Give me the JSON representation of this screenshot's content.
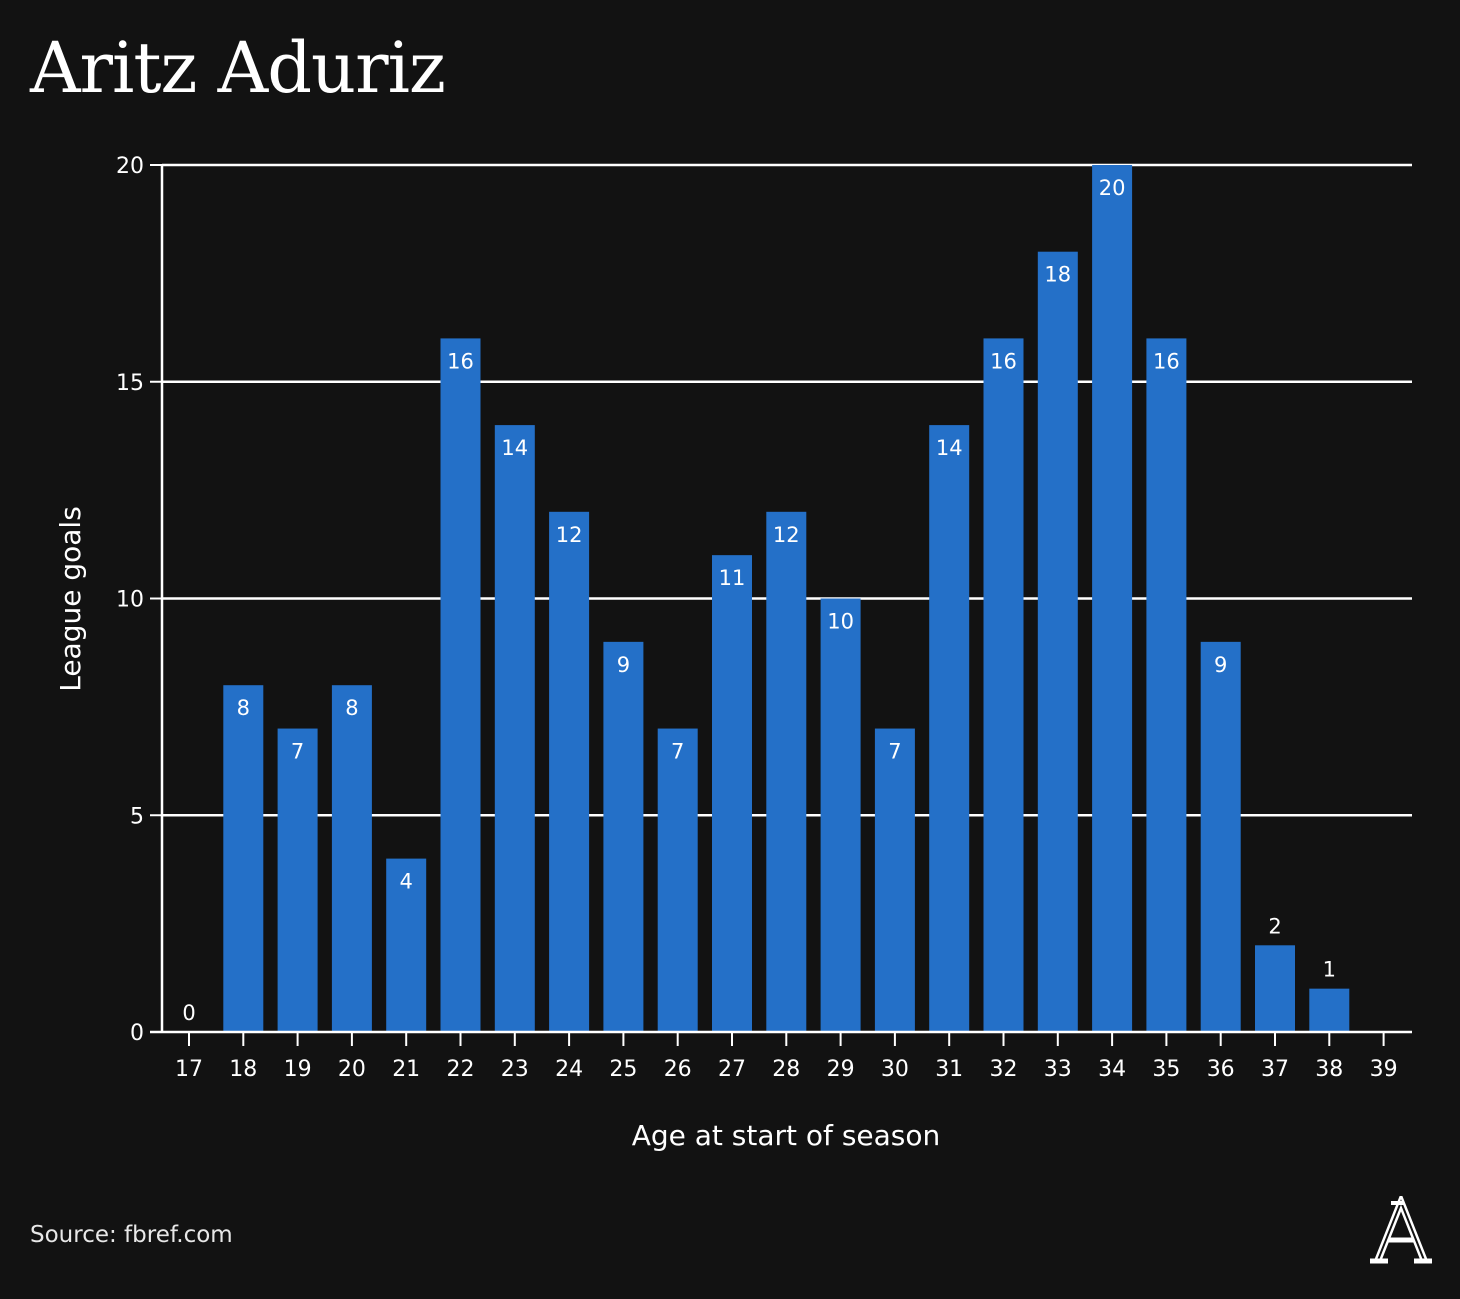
{
  "header": {
    "title": "Aritz Aduriz"
  },
  "footer": {
    "source": "Source: fbref.com"
  },
  "colors": {
    "background": "#121212",
    "bar": "#2470c8",
    "grid": "#ffffff",
    "text": "#ffffff"
  },
  "logo": {
    "icon": "athletic-logo-icon",
    "glyph": "A"
  },
  "chart_data": {
    "type": "bar",
    "title": "Aritz Aduriz",
    "xlabel": "Age at start of season",
    "ylabel": "League goals",
    "categories": [
      "17",
      "18",
      "19",
      "20",
      "21",
      "22",
      "23",
      "24",
      "25",
      "26",
      "27",
      "28",
      "29",
      "30",
      "31",
      "32",
      "33",
      "34",
      "35",
      "36",
      "37",
      "38",
      "39"
    ],
    "series": [
      {
        "values": [
          0,
          8,
          7,
          8,
          4,
          16,
          14,
          12,
          9,
          7,
          11,
          12,
          10,
          7,
          14,
          16,
          18,
          20,
          16,
          9,
          2,
          1,
          null
        ]
      }
    ],
    "ylim": [
      0,
      20
    ],
    "yticks": [
      0,
      5,
      10,
      15,
      20
    ],
    "grid": true,
    "legend": "none"
  }
}
